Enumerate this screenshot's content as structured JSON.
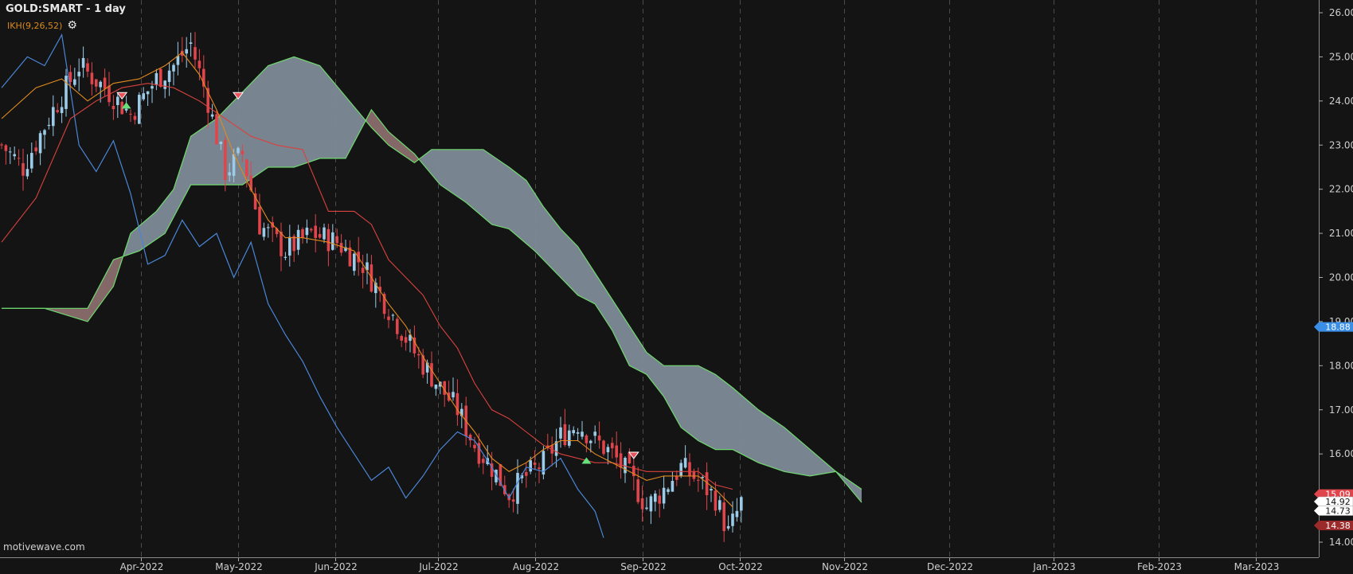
{
  "header": {
    "title": "GOLD:SMART - 1 day",
    "indicator": "IKH(9,26,52)"
  },
  "watermark": "motivewave.com",
  "icons": {
    "settings": "gear-icon"
  },
  "colors": {
    "background": "#141414",
    "up_candle": "#9ccbe8",
    "down_candle": "#e0454c",
    "tenkan": "#e08a1e",
    "kijun": "#d9423e",
    "chikou": "#4a86d6",
    "cloud_bull": "#7d8a96",
    "cloud_bear": "#8a6b6b",
    "span_a": "#6fd86f",
    "span_b": "#6fd86f"
  },
  "chart_data": {
    "type": "candlestick",
    "title": "GOLD:SMART - 1 day",
    "x_ticks": [
      "Apr-2022",
      "May-2022",
      "Jun-2022",
      "Jul-2022",
      "Aug-2022",
      "Sep-2022",
      "Oct-2022",
      "Nov-2022",
      "Dec-2022",
      "Jan-2023",
      "Feb-2023",
      "Mar-2023"
    ],
    "y_ticks": [
      "14.00",
      "15.00",
      "16.00",
      "17.00",
      "18.00",
      "19.00",
      "20.00",
      "21.00",
      "22.00",
      "23.00",
      "24.00",
      "25.00",
      "26.00"
    ],
    "ylim": [
      13.8,
      26.2
    ],
    "grid": "vertical dashed",
    "price_flags": [
      {
        "label": "18.88",
        "value": 18.88,
        "color": "#3a8ee6"
      },
      {
        "label": "15.09",
        "value": 15.09,
        "color": "#e0454c"
      },
      {
        "label": "14.92",
        "value": 14.92,
        "color": "#ffffff"
      },
      {
        "label": "14.73",
        "value": 14.73,
        "color": "#ffffff"
      },
      {
        "label": "14.38",
        "value": 14.38,
        "color": "#9b2b2b"
      }
    ],
    "close_path": [
      [
        0,
        23.0
      ],
      [
        5,
        22.5
      ],
      [
        12,
        23.8
      ],
      [
        18,
        24.8
      ],
      [
        24,
        24.3
      ],
      [
        30,
        23.7
      ],
      [
        36,
        24.5
      ],
      [
        40,
        24.8
      ],
      [
        44,
        25.3
      ],
      [
        48,
        24.0
      ],
      [
        52,
        22.4
      ],
      [
        56,
        22.8
      ],
      [
        60,
        21.2
      ],
      [
        66,
        20.6
      ],
      [
        72,
        21.0
      ],
      [
        78,
        20.8
      ],
      [
        84,
        20.3
      ],
      [
        90,
        19.3
      ],
      [
        96,
        18.3
      ],
      [
        102,
        17.5
      ],
      [
        106,
        17.0
      ],
      [
        110,
        16.2
      ],
      [
        114,
        15.7
      ],
      [
        118,
        15.1
      ],
      [
        122,
        15.5
      ],
      [
        126,
        15.8
      ],
      [
        130,
        16.4
      ],
      [
        134,
        16.7
      ],
      [
        138,
        16.3
      ],
      [
        142,
        16.0
      ],
      [
        146,
        15.5
      ],
      [
        150,
        14.8
      ],
      [
        154,
        15.2
      ],
      [
        158,
        15.7
      ],
      [
        162,
        15.4
      ],
      [
        166,
        15.0
      ],
      [
        169,
        14.2
      ],
      [
        172,
        14.9
      ]
    ],
    "tenkan_path": [
      [
        0,
        23.6
      ],
      [
        8,
        24.3
      ],
      [
        14,
        24.5
      ],
      [
        20,
        24.0
      ],
      [
        26,
        24.4
      ],
      [
        32,
        24.5
      ],
      [
        38,
        24.8
      ],
      [
        42,
        25.1
      ],
      [
        46,
        24.6
      ],
      [
        50,
        23.8
      ],
      [
        54,
        22.8
      ],
      [
        58,
        22.0
      ],
      [
        62,
        21.3
      ],
      [
        66,
        20.9
      ],
      [
        70,
        20.9
      ],
      [
        76,
        20.8
      ],
      [
        82,
        20.6
      ],
      [
        86,
        20.0
      ],
      [
        90,
        19.4
      ],
      [
        94,
        18.9
      ],
      [
        98,
        18.2
      ],
      [
        102,
        17.6
      ],
      [
        106,
        17.0
      ],
      [
        110,
        16.5
      ],
      [
        114,
        15.9
      ],
      [
        118,
        15.6
      ],
      [
        122,
        15.8
      ],
      [
        126,
        16.1
      ],
      [
        130,
        16.3
      ],
      [
        134,
        16.3
      ],
      [
        138,
        16.0
      ],
      [
        142,
        15.8
      ],
      [
        146,
        15.6
      ],
      [
        150,
        15.4
      ],
      [
        154,
        15.5
      ],
      [
        158,
        15.5
      ],
      [
        162,
        15.5
      ],
      [
        166,
        15.2
      ],
      [
        170,
        14.8
      ]
    ],
    "kijun_path": [
      [
        0,
        20.8
      ],
      [
        8,
        21.8
      ],
      [
        16,
        23.6
      ],
      [
        22,
        24.0
      ],
      [
        28,
        24.3
      ],
      [
        34,
        24.4
      ],
      [
        40,
        24.3
      ],
      [
        46,
        24.0
      ],
      [
        52,
        23.6
      ],
      [
        58,
        23.2
      ],
      [
        64,
        23.0
      ],
      [
        70,
        22.9
      ],
      [
        76,
        21.5
      ],
      [
        82,
        21.5
      ],
      [
        86,
        21.2
      ],
      [
        90,
        20.4
      ],
      [
        94,
        20.0
      ],
      [
        98,
        19.6
      ],
      [
        102,
        18.9
      ],
      [
        106,
        18.4
      ],
      [
        110,
        17.6
      ],
      [
        114,
        17.0
      ],
      [
        118,
        16.8
      ],
      [
        122,
        16.5
      ],
      [
        126,
        16.2
      ],
      [
        130,
        16.0
      ],
      [
        134,
        15.9
      ],
      [
        138,
        15.8
      ],
      [
        142,
        15.8
      ],
      [
        146,
        15.7
      ],
      [
        150,
        15.6
      ],
      [
        154,
        15.6
      ],
      [
        158,
        15.6
      ],
      [
        162,
        15.6
      ],
      [
        166,
        15.3
      ],
      [
        170,
        15.2
      ]
    ],
    "chikou_path": [
      [
        0,
        24.3
      ],
      [
        6,
        25.0
      ],
      [
        10,
        24.8
      ],
      [
        14,
        25.5
      ],
      [
        18,
        23.0
      ],
      [
        22,
        22.4
      ],
      [
        26,
        23.1
      ],
      [
        30,
        21.9
      ],
      [
        34,
        20.3
      ],
      [
        38,
        20.5
      ],
      [
        42,
        21.3
      ],
      [
        46,
        20.7
      ],
      [
        50,
        21.0
      ],
      [
        54,
        20.0
      ],
      [
        58,
        20.8
      ],
      [
        62,
        19.4
      ],
      [
        66,
        18.7
      ],
      [
        70,
        18.1
      ],
      [
        74,
        17.3
      ],
      [
        78,
        16.6
      ],
      [
        82,
        16.0
      ],
      [
        86,
        15.4
      ],
      [
        90,
        15.7
      ],
      [
        94,
        15.0
      ],
      [
        98,
        15.5
      ],
      [
        102,
        16.1
      ],
      [
        106,
        16.5
      ],
      [
        110,
        16.3
      ],
      [
        114,
        15.7
      ],
      [
        118,
        15.0
      ],
      [
        122,
        15.7
      ],
      [
        126,
        15.6
      ],
      [
        130,
        15.9
      ],
      [
        134,
        15.2
      ],
      [
        138,
        14.7
      ],
      [
        140,
        14.1
      ]
    ],
    "span_a_path": [
      [
        0,
        19.3
      ],
      [
        10,
        19.3
      ],
      [
        20,
        19.0
      ],
      [
        26,
        19.8
      ],
      [
        30,
        21.0
      ],
      [
        36,
        21.5
      ],
      [
        40,
        22.0
      ],
      [
        44,
        23.2
      ],
      [
        50,
        23.6
      ],
      [
        56,
        24.2
      ],
      [
        62,
        24.8
      ],
      [
        68,
        25.0
      ],
      [
        74,
        24.8
      ],
      [
        80,
        24.1
      ],
      [
        86,
        23.4
      ],
      [
        90,
        23.0
      ],
      [
        96,
        22.6
      ],
      [
        100,
        22.9
      ],
      [
        106,
        22.9
      ],
      [
        112,
        22.9
      ],
      [
        118,
        22.5
      ],
      [
        122,
        22.2
      ],
      [
        126,
        21.6
      ],
      [
        130,
        21.1
      ],
      [
        134,
        20.7
      ],
      [
        138,
        20.1
      ],
      [
        142,
        19.5
      ],
      [
        146,
        18.9
      ],
      [
        150,
        18.3
      ],
      [
        154,
        18.0
      ],
      [
        158,
        18.0
      ],
      [
        162,
        18.0
      ],
      [
        166,
        17.8
      ],
      [
        170,
        17.5
      ],
      [
        176,
        17.0
      ],
      [
        182,
        16.6
      ],
      [
        188,
        16.1
      ],
      [
        194,
        15.6
      ],
      [
        200,
        15.2
      ]
    ],
    "span_b_path": [
      [
        0,
        19.3
      ],
      [
        10,
        19.3
      ],
      [
        20,
        19.3
      ],
      [
        26,
        20.4
      ],
      [
        32,
        20.6
      ],
      [
        38,
        21.0
      ],
      [
        44,
        22.1
      ],
      [
        50,
        22.1
      ],
      [
        56,
        22.1
      ],
      [
        62,
        22.5
      ],
      [
        68,
        22.5
      ],
      [
        74,
        22.7
      ],
      [
        80,
        22.7
      ],
      [
        86,
        23.8
      ],
      [
        90,
        23.3
      ],
      [
        96,
        22.8
      ],
      [
        102,
        22.1
      ],
      [
        108,
        21.7
      ],
      [
        114,
        21.2
      ],
      [
        118,
        21.1
      ],
      [
        124,
        20.6
      ],
      [
        130,
        20.0
      ],
      [
        134,
        19.6
      ],
      [
        138,
        19.4
      ],
      [
        142,
        18.8
      ],
      [
        146,
        18.0
      ],
      [
        150,
        17.8
      ],
      [
        154,
        17.3
      ],
      [
        158,
        16.6
      ],
      [
        162,
        16.3
      ],
      [
        166,
        16.1
      ],
      [
        170,
        16.1
      ],
      [
        176,
        15.8
      ],
      [
        182,
        15.6
      ],
      [
        188,
        15.5
      ],
      [
        194,
        15.6
      ],
      [
        200,
        14.9
      ]
    ],
    "signals": [
      {
        "bar": 28,
        "value": 24.1,
        "dir": "down"
      },
      {
        "bar": 29,
        "value": 23.9,
        "dir": "up"
      },
      {
        "bar": 55,
        "value": 24.1,
        "dir": "down"
      },
      {
        "bar": 136,
        "value": 15.85,
        "dir": "up"
      },
      {
        "bar": 147,
        "value": 15.95,
        "dir": "down"
      }
    ],
    "bars_in_view": 305
  }
}
